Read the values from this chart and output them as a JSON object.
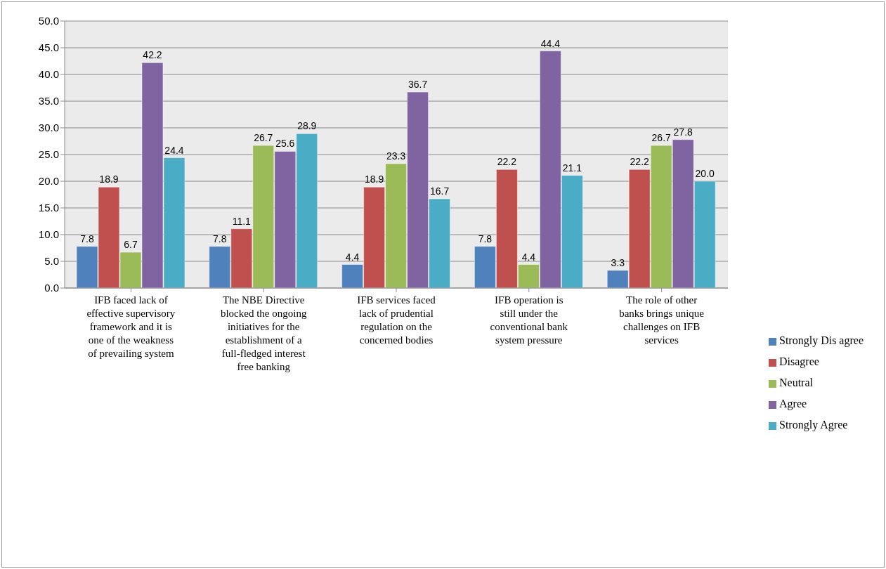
{
  "chart_data": {
    "type": "bar",
    "categories": [
      "IFB faced  lack of effective supervisory framework and it is one of the weakness of prevailing system",
      "The  NBE Directive  blocked the ongoing initiatives     for the establishment of a full-fledged interest free banking",
      "IFB services faced lack of prudential regulation on the concerned bodies",
      "IFB operation is still under the conventional bank system pressure",
      "The role of other banks brings unique challenges on IFB services"
    ],
    "series": [
      {
        "name": "Strongly Dis agree",
        "color": "#4f81bd",
        "values": [
          7.8,
          7.8,
          4.4,
          7.8,
          3.3
        ],
        "value_labels": [
          "7.8",
          "7.8",
          "4.4",
          "7.8",
          "3.3"
        ]
      },
      {
        "name": "Disagree",
        "color": "#c0504d",
        "values": [
          18.9,
          11.1,
          18.9,
          22.2,
          22.2
        ],
        "value_labels": [
          "18.9",
          "11.1",
          "18.9",
          "22.2",
          "22.2"
        ]
      },
      {
        "name": "Neutral",
        "color": "#9bbb59",
        "values": [
          6.7,
          26.7,
          23.3,
          4.4,
          26.7
        ],
        "value_labels": [
          "6.7",
          "26.7",
          "23.3",
          "4.4",
          "26.7"
        ]
      },
      {
        "name": "Agree",
        "color": "#8064a2",
        "values": [
          42.2,
          25.6,
          36.7,
          44.4,
          27.8
        ],
        "value_labels": [
          "42.2",
          "25.6",
          "36.7",
          "44.4",
          "27.8"
        ]
      },
      {
        "name": "Strongly Agree",
        "color": "#4bacc6",
        "values": [
          24.4,
          28.9,
          16.7,
          21.1,
          20.0
        ],
        "value_labels": [
          "24.4",
          "28.9",
          "16.7",
          "21.1",
          "20.0"
        ]
      }
    ],
    "ylim": [
      0,
      50
    ],
    "yticks": [
      {
        "value": 0,
        "label": "0.0"
      },
      {
        "value": 5,
        "label": "5.0"
      },
      {
        "value": 10,
        "label": "10.0"
      },
      {
        "value": 15,
        "label": "15.0"
      },
      {
        "value": 20,
        "label": "20.0"
      },
      {
        "value": 25,
        "label": "25.0"
      },
      {
        "value": 30,
        "label": "30.0"
      },
      {
        "value": 35,
        "label": "35.0"
      },
      {
        "value": 40,
        "label": "40.0"
      },
      {
        "value": 45,
        "label": "45.0"
      },
      {
        "value": 50,
        "label": "50.0"
      }
    ],
    "grid": "y",
    "legend": "right"
  }
}
